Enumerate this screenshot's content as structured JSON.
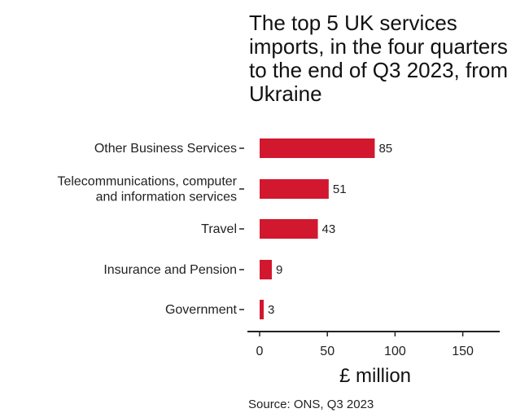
{
  "chart_data": {
    "type": "bar",
    "orientation": "horizontal",
    "title": "The top 5 UK services imports, in the four quarters to the end of Q3 2023, from Ukraine",
    "categories": [
      [
        "Other Business Services"
      ],
      [
        "Telecommunications, computer",
        "and information services"
      ],
      [
        "Travel"
      ],
      [
        "Insurance and Pension"
      ],
      [
        "Government"
      ]
    ],
    "values": [
      85,
      51,
      43,
      9,
      3
    ],
    "value_labels": [
      "85",
      "51",
      "43",
      "9",
      "3"
    ],
    "xlabel": "£ million",
    "xlim": [
      0,
      175
    ],
    "xticks": [
      0,
      50,
      100,
      150
    ],
    "xtick_labels": [
      "0",
      "50",
      "100",
      "150"
    ],
    "bar_color": "#d2182f",
    "source": "Source: ONS, Q3 2023"
  }
}
